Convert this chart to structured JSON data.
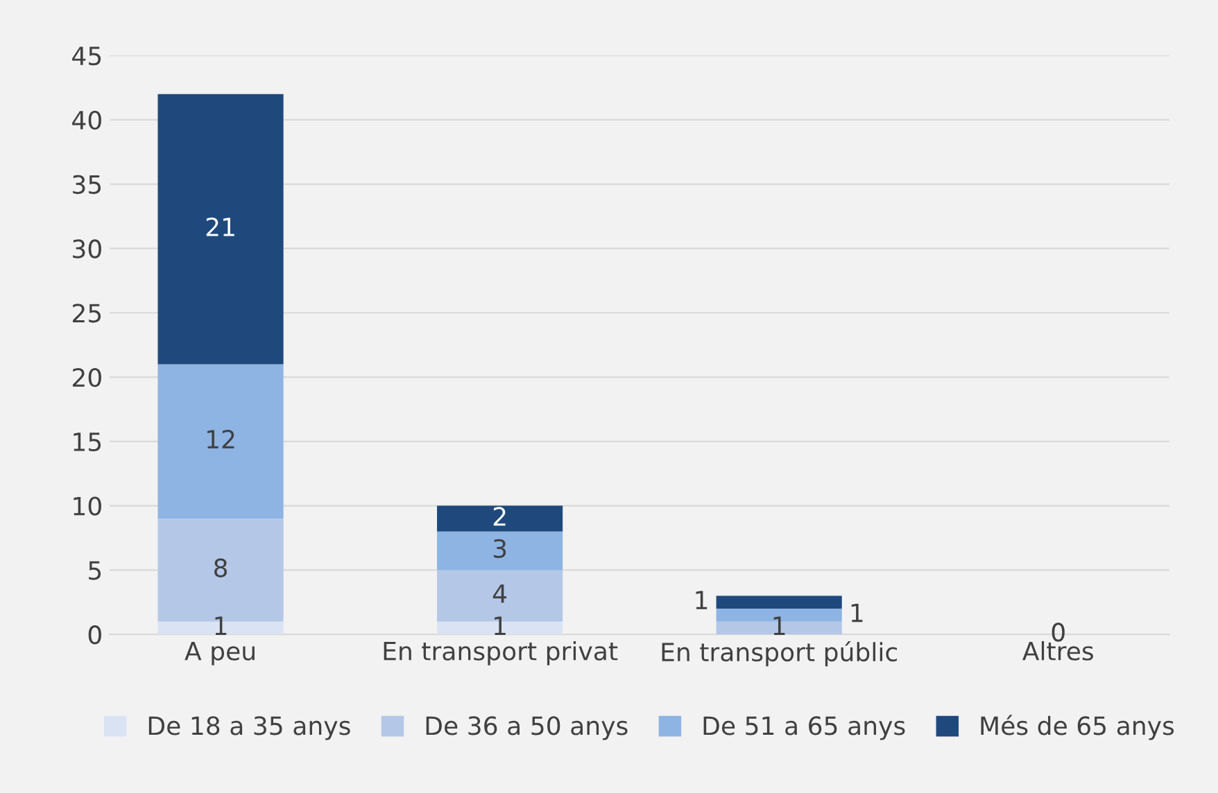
{
  "chart_data": {
    "type": "bar",
    "stacked": true,
    "categories": [
      "A peu",
      "En transport privat",
      "En transport públic",
      "Altres"
    ],
    "series": [
      {
        "name": "De 18 a 35 anys",
        "color": "#dae3f3",
        "values": [
          1,
          1,
          0,
          0
        ],
        "value_labels": [
          "1",
          "1",
          null,
          null
        ]
      },
      {
        "name": "De 36 a 50 anys",
        "color": "#b4c7e7",
        "values": [
          8,
          4,
          1,
          0
        ],
        "value_labels": [
          "8",
          "4",
          "1",
          null
        ]
      },
      {
        "name": "De 51 a 65 anys",
        "color": "#8eb4e3",
        "values": [
          12,
          3,
          1,
          0
        ],
        "value_labels": [
          "12",
          "3",
          "1",
          null
        ]
      },
      {
        "name": "Més de 65 anys",
        "color": "#1f497d",
        "values": [
          21,
          2,
          1,
          0
        ],
        "value_labels": [
          "21",
          "2",
          "1",
          "0"
        ]
      }
    ],
    "ylim": [
      0,
      45
    ],
    "yticks": [
      0,
      5,
      10,
      15,
      20,
      25,
      30,
      35,
      40,
      45
    ],
    "grid": "y",
    "legend": "bottom"
  }
}
